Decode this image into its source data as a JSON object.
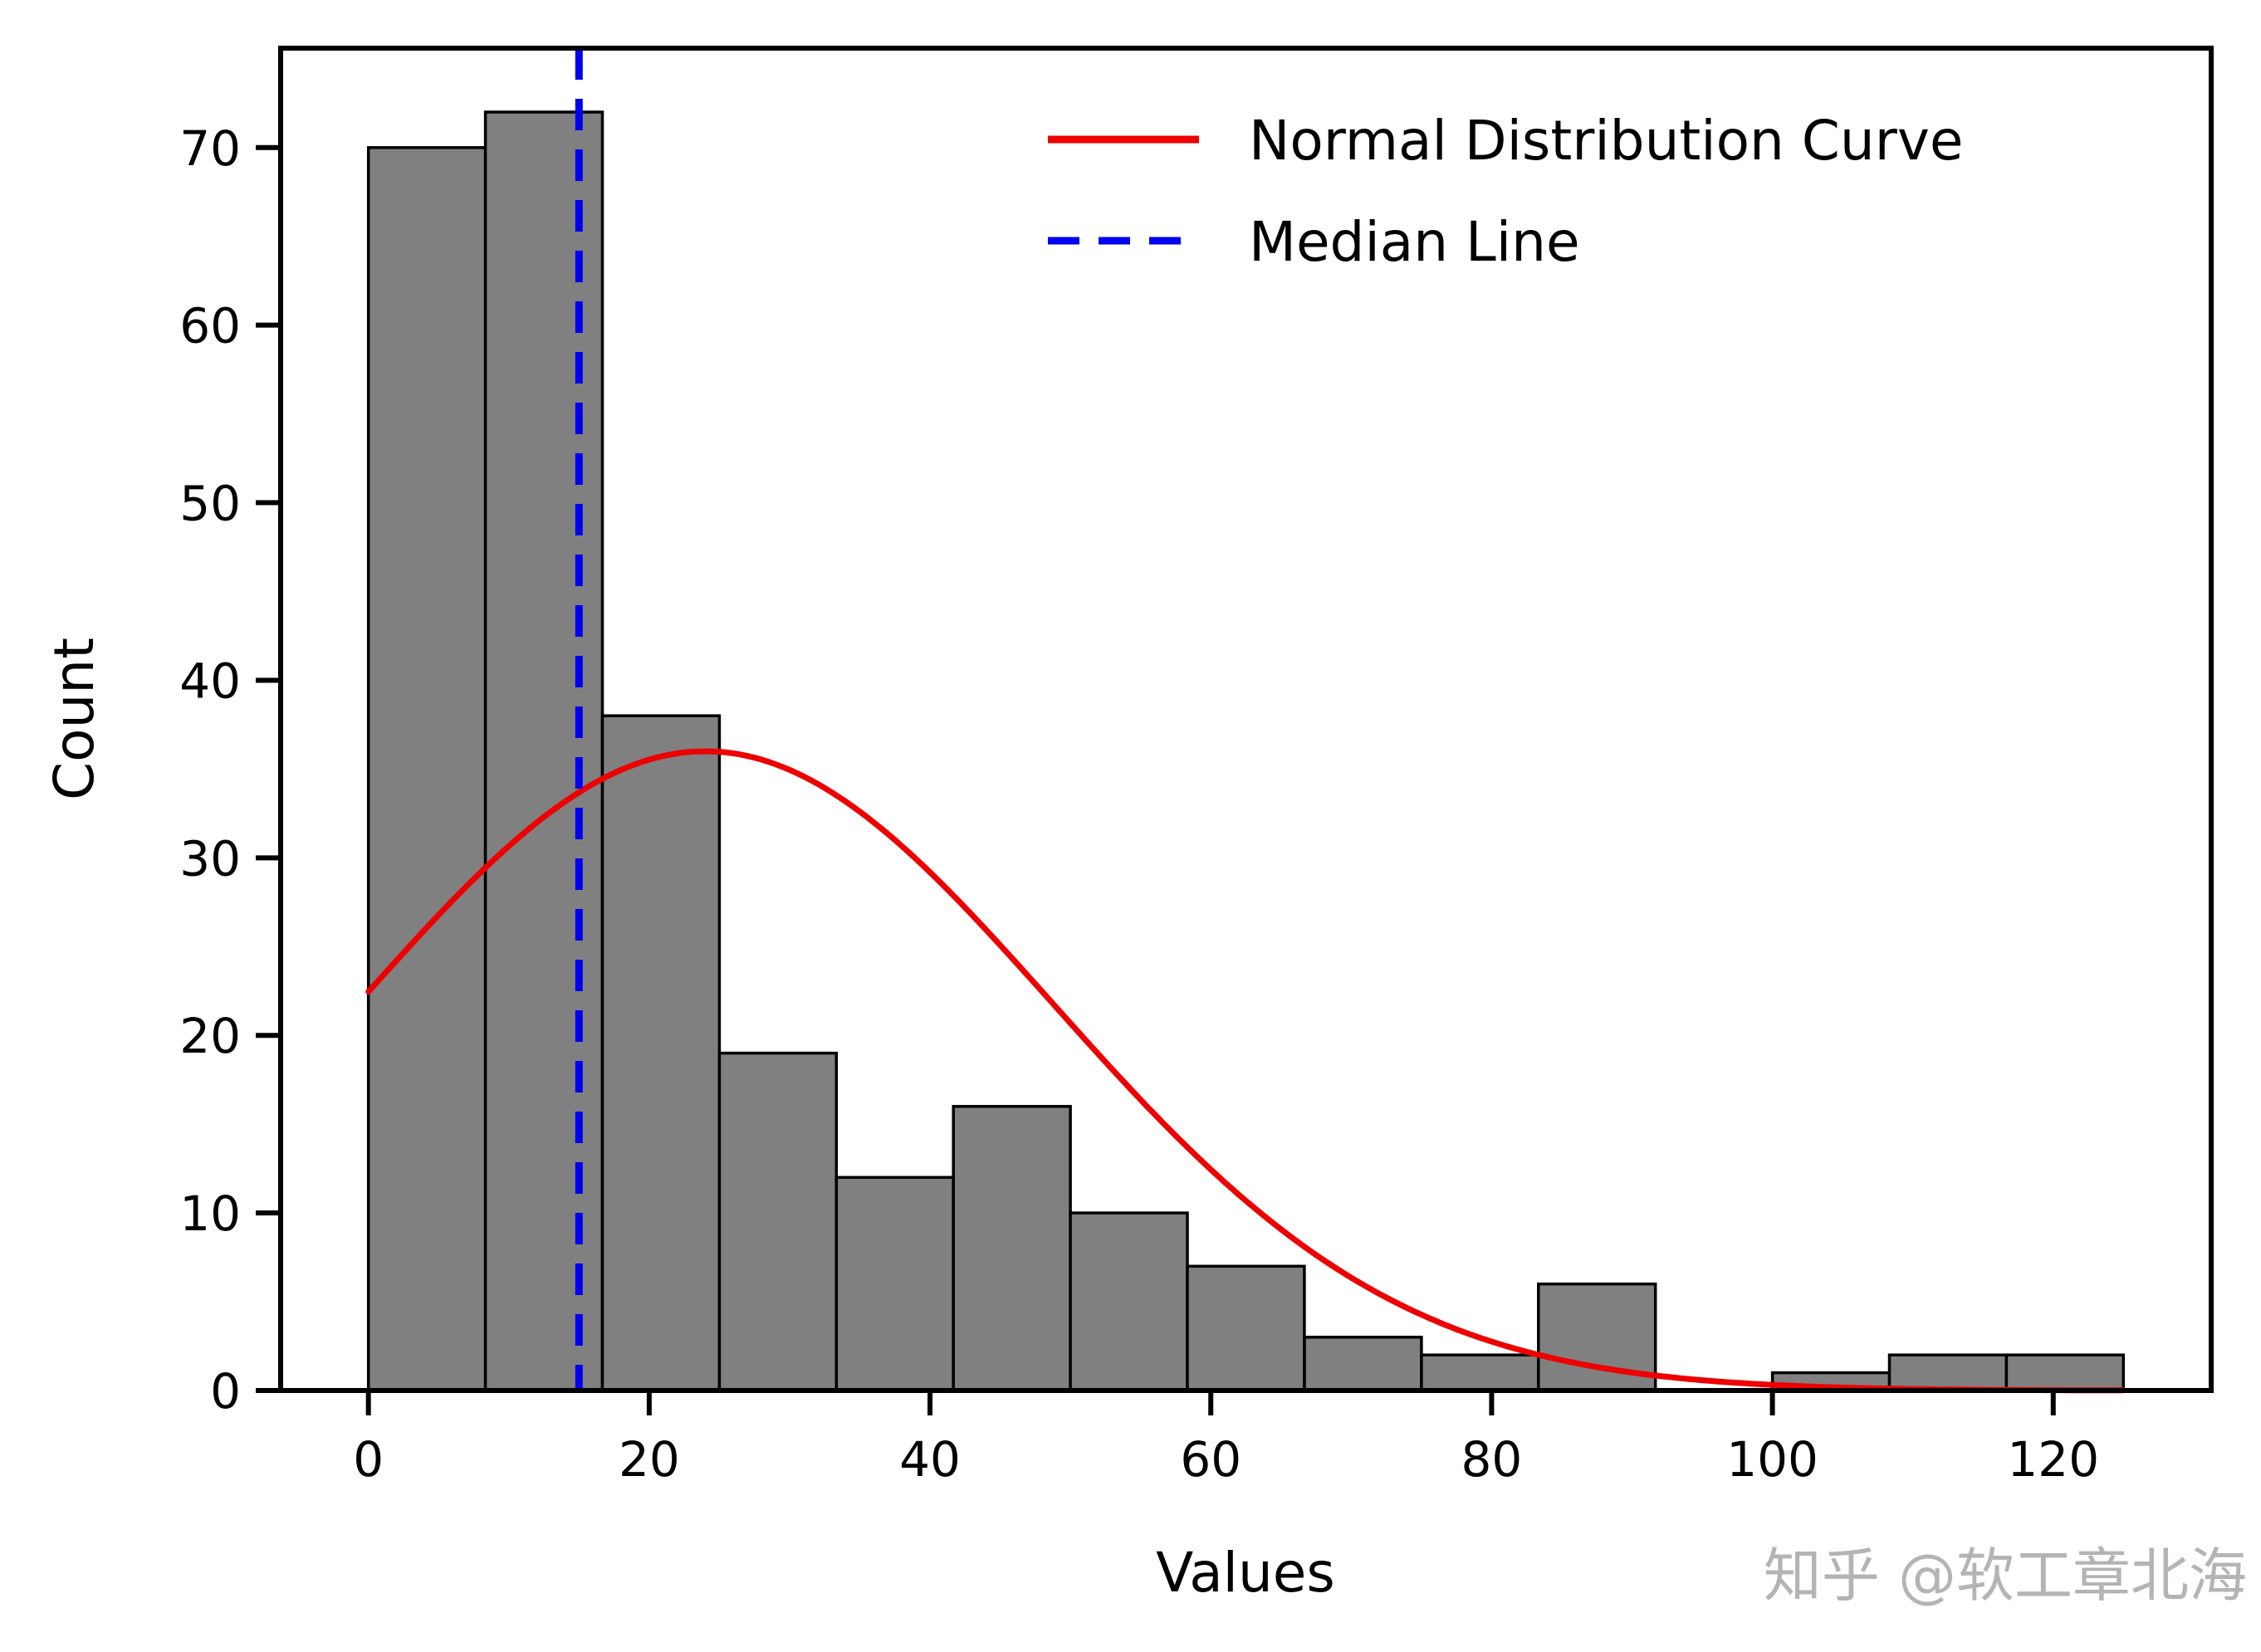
{
  "watermark": {
    "text": "知乎 @软工章北海"
  },
  "chart_data": {
    "type": "bar",
    "subtype": "histogram-with-overlays",
    "title": "",
    "xlabel": "Values",
    "ylabel": "Count",
    "xlim": [
      -6.25,
      131.25
    ],
    "ylim": [
      0,
      75.6
    ],
    "x_ticks": [
      0,
      20,
      40,
      60,
      80,
      100,
      120
    ],
    "y_ticks": [
      0,
      10,
      20,
      30,
      40,
      50,
      60,
      70
    ],
    "grid": false,
    "bins": {
      "start": 0,
      "end": 125,
      "count": 15,
      "width": 8.3333
    },
    "categories": [
      "0-8.3",
      "8.3-16.7",
      "16.7-25",
      "25-33.3",
      "33.3-41.7",
      "41.7-50",
      "50-58.3",
      "58.3-66.7",
      "66.7-75",
      "75-83.3",
      "83.3-91.7",
      "91.7-100",
      "100-108.3",
      "108.3-116.7",
      "116.7-125"
    ],
    "values": [
      70,
      72,
      38,
      19,
      12,
      16,
      10,
      7,
      3,
      2,
      6,
      0,
      1,
      2,
      2
    ],
    "bar_style": {
      "fill": "#808080",
      "edge": "#000000",
      "edge_width": 3.5
    },
    "normal_curve": {
      "label": "Normal Distribution Curve",
      "color": "#ee0000",
      "line_width": 7,
      "amplitude": 36,
      "mean": 24,
      "sigma": 24.7,
      "x_range": [
        0,
        125
      ]
    },
    "median_line": {
      "label": "Median Line",
      "color": "#0000ee",
      "x": 15,
      "line_width": 9,
      "dash": [
        38,
        23
      ]
    },
    "legend": {
      "position": "upper right",
      "entries": [
        {
          "label": "Normal Distribution Curve",
          "color": "#ee0000",
          "style": "solid"
        },
        {
          "label": "Median Line",
          "color": "#0000ee",
          "style": "dashed"
        }
      ]
    }
  }
}
